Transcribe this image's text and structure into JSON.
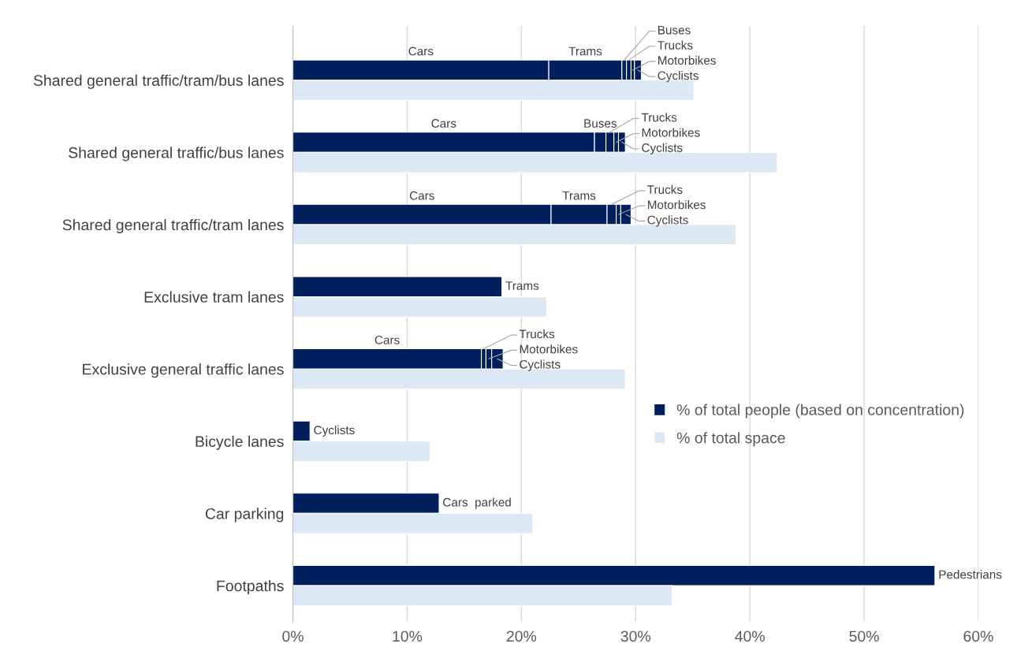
{
  "chart_data": {
    "type": "bar",
    "orientation": "horizontal",
    "categories": [
      "Shared general traffic/tram/bus lanes",
      "Shared general traffic/bus lanes",
      "Shared general traffic/tram lanes",
      "Exclusive tram lanes",
      "Exclusive general traffic lanes",
      "Bicycle lanes",
      "Car parking",
      "Footpaths"
    ],
    "series": [
      {
        "name": "% of total people (based on concentration)",
        "color": "#001f5c",
        "values": [
          22.4,
          26.4,
          22.6,
          null,
          16.5,
          null,
          null,
          null
        ],
        "base": [
          0,
          0,
          0,
          null,
          0,
          null,
          null,
          null
        ],
        "value_labels": [
          "Cars",
          "Cars",
          "Cars",
          null,
          "Cars",
          null,
          null,
          null
        ]
      },
      {
        "color": "#001f5c",
        "values": [
          6.4,
          null,
          4.9,
          18.3,
          null,
          null,
          null,
          null
        ],
        "base": [
          22.4,
          null,
          22.6,
          0,
          null,
          null,
          null,
          null
        ],
        "value_labels": [
          "Trams",
          null,
          "Trams",
          "Trams",
          null,
          null,
          null,
          null
        ]
      },
      {
        "color": "#001f5c",
        "values": [
          0.4,
          1.0,
          null,
          null,
          null,
          null,
          null,
          null
        ],
        "base": [
          28.8,
          26.4,
          null,
          null,
          null,
          null,
          null,
          null
        ],
        "value_labels": [
          "Buses",
          "Buses",
          null,
          null,
          null,
          null,
          null,
          null
        ]
      },
      {
        "color": "#001f5c",
        "values": [
          0.4,
          0.7,
          0.8,
          null,
          0.4,
          null,
          null,
          null
        ],
        "base": [
          29.2,
          27.4,
          27.5,
          null,
          16.5,
          null,
          null,
          null
        ],
        "value_labels": [
          "Trucks",
          "Trucks",
          "Trucks",
          null,
          "Trucks",
          null,
          null,
          null
        ]
      },
      {
        "color": "#001f5c",
        "values": [
          0.3,
          0.4,
          0.4,
          null,
          0.5,
          null,
          null,
          null
        ],
        "base": [
          29.6,
          28.1,
          28.3,
          null,
          16.9,
          null,
          null,
          null
        ],
        "value_labels": [
          "Motorbikes",
          "Motorbikes",
          "Motorbikes",
          null,
          "Motorbikes",
          null,
          null,
          null
        ]
      },
      {
        "color": "#001f5c",
        "values": [
          0.6,
          0.6,
          0.9,
          null,
          1.0,
          1.5,
          null,
          null
        ],
        "base": [
          29.9,
          28.5,
          28.7,
          null,
          17.4,
          0,
          null,
          null
        ],
        "value_labels": [
          "Cyclists",
          "Cyclists",
          "Cyclists",
          null,
          "Cyclists",
          "Cyclists",
          null,
          null
        ]
      },
      {
        "color": "#001f5c",
        "values": [
          null,
          null,
          null,
          null,
          null,
          null,
          12.8,
          null
        ],
        "base": [
          null,
          null,
          null,
          null,
          null,
          null,
          0,
          null
        ],
        "value_labels": [
          null,
          null,
          null,
          null,
          null,
          null,
          "Cars  parked",
          null
        ]
      },
      {
        "color": "#001f5c",
        "values": [
          null,
          null,
          null,
          null,
          null,
          null,
          null,
          56.2
        ],
        "base": [
          null,
          null,
          null,
          null,
          null,
          null,
          null,
          0
        ],
        "value_labels": [
          null,
          null,
          null,
          null,
          null,
          null,
          null,
          "Pedestrians"
        ]
      },
      {
        "name": "% of total space",
        "color": "#dce8f5",
        "values": [
          35.1,
          42.4,
          38.8,
          22.2,
          29.1,
          12.0,
          21.0,
          33.2
        ]
      }
    ],
    "xlim": [
      0,
      60
    ],
    "xticks": [
      {
        "value": 0,
        "label": "0%"
      },
      {
        "value": 10,
        "label": "10%"
      },
      {
        "value": 20,
        "label": "20%"
      },
      {
        "value": 30,
        "label": "30%"
      },
      {
        "value": 40,
        "label": "40%"
      },
      {
        "value": 50,
        "label": "50%"
      },
      {
        "value": 60,
        "label": "60%"
      }
    ],
    "grid": "x",
    "legend": "right"
  }
}
